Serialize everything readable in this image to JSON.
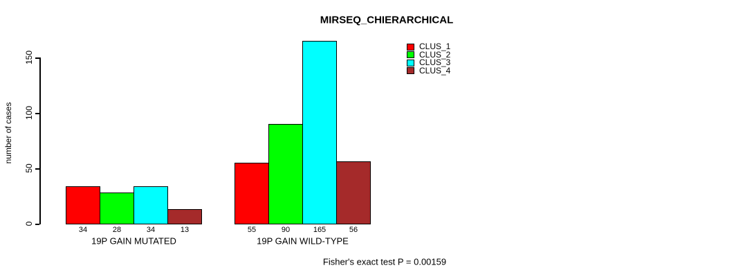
{
  "title": "MIRSEQ_CHIERARCHICAL",
  "footer": {
    "caption": "Fisher's exact test P = 0.00159"
  },
  "chart_data": {
    "type": "bar",
    "title": "MIRSEQ_CHIERARCHICAL",
    "xlabel": "",
    "ylabel": "number of cases",
    "ylim": [
      0,
      165
    ],
    "yticks": [
      0,
      50,
      100,
      150
    ],
    "grid": false,
    "legend_position": "top-right-inside",
    "bar_border_color": "#000000",
    "categories": [
      "19P GAIN MUTATED",
      "19P GAIN WILD-TYPE"
    ],
    "series": [
      {
        "name": "CLUS_1",
        "color": "#ff0000",
        "values": [
          34,
          55
        ]
      },
      {
        "name": "CLUS_2",
        "color": "#00ff00",
        "values": [
          28,
          90
        ]
      },
      {
        "name": "CLUS_3",
        "color": "#00ffff",
        "values": [
          34,
          165
        ]
      },
      {
        "name": "CLUS_4",
        "color": "#a52a2a",
        "values": [
          13,
          56
        ]
      }
    ],
    "bar_value_labels": {
      "19P GAIN MUTATED": [
        34,
        28,
        34,
        13
      ],
      "19P GAIN WILD-TYPE": [
        55,
        90,
        165,
        56
      ]
    },
    "annotation": "Fisher's exact test P = 0.00159"
  }
}
